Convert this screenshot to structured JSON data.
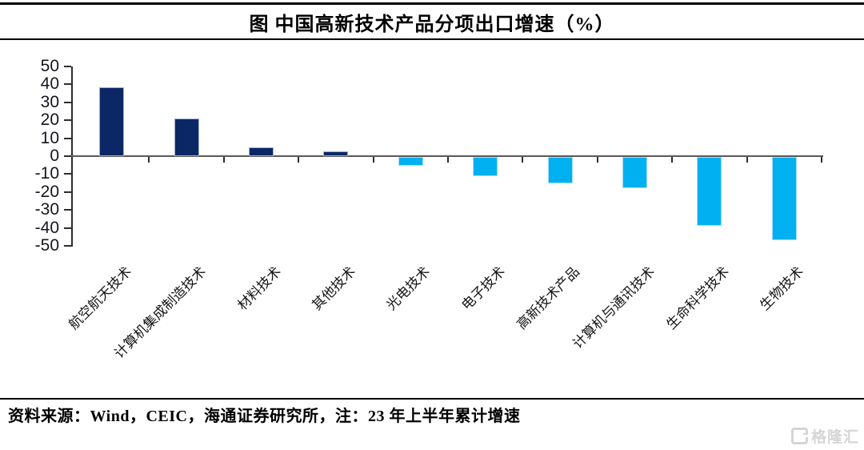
{
  "title": "图 中国高新技术产品分项出口增速（%）",
  "chart_data": {
    "type": "bar",
    "title": "图 中国高新技术产品分项出口增速（%）",
    "categories": [
      "航空航天技术",
      "计算机集成制造技术",
      "材料技术",
      "其他技术",
      "光电技术",
      "电子技术",
      "高新技术产品",
      "计算机与通讯技术",
      "生命科学技术",
      "生物技术"
    ],
    "values": [
      38.6,
      21.0,
      5.0,
      2.8,
      -4.8,
      -10.5,
      -14.7,
      -17.6,
      -38.6,
      -46.6
    ],
    "y_ticks": [
      "50",
      "40",
      "30",
      "20",
      "10",
      "0",
      "-10",
      "-20",
      "-30",
      "-40",
      "-50"
    ],
    "ylim": [
      -50,
      50
    ],
    "xlabel": "",
    "ylabel": "",
    "grid": false,
    "legend_position": "none",
    "positive_color": "#0b2766",
    "negative_color": "#00b0f0",
    "positive_border_color": "#a3b2d2",
    "negative_border_color": "#a5dff7",
    "axis_color": "#2e2e2e",
    "zero_line_color": "#595959"
  },
  "footer": {
    "source_note": "资料来源：Wind，CEIC，海通证券研究所，注：23 年上半年累计增速"
  },
  "watermark": {
    "icon": "gelonghui-g-logo",
    "text": "格隆汇",
    "color": "#d5d5d5"
  }
}
